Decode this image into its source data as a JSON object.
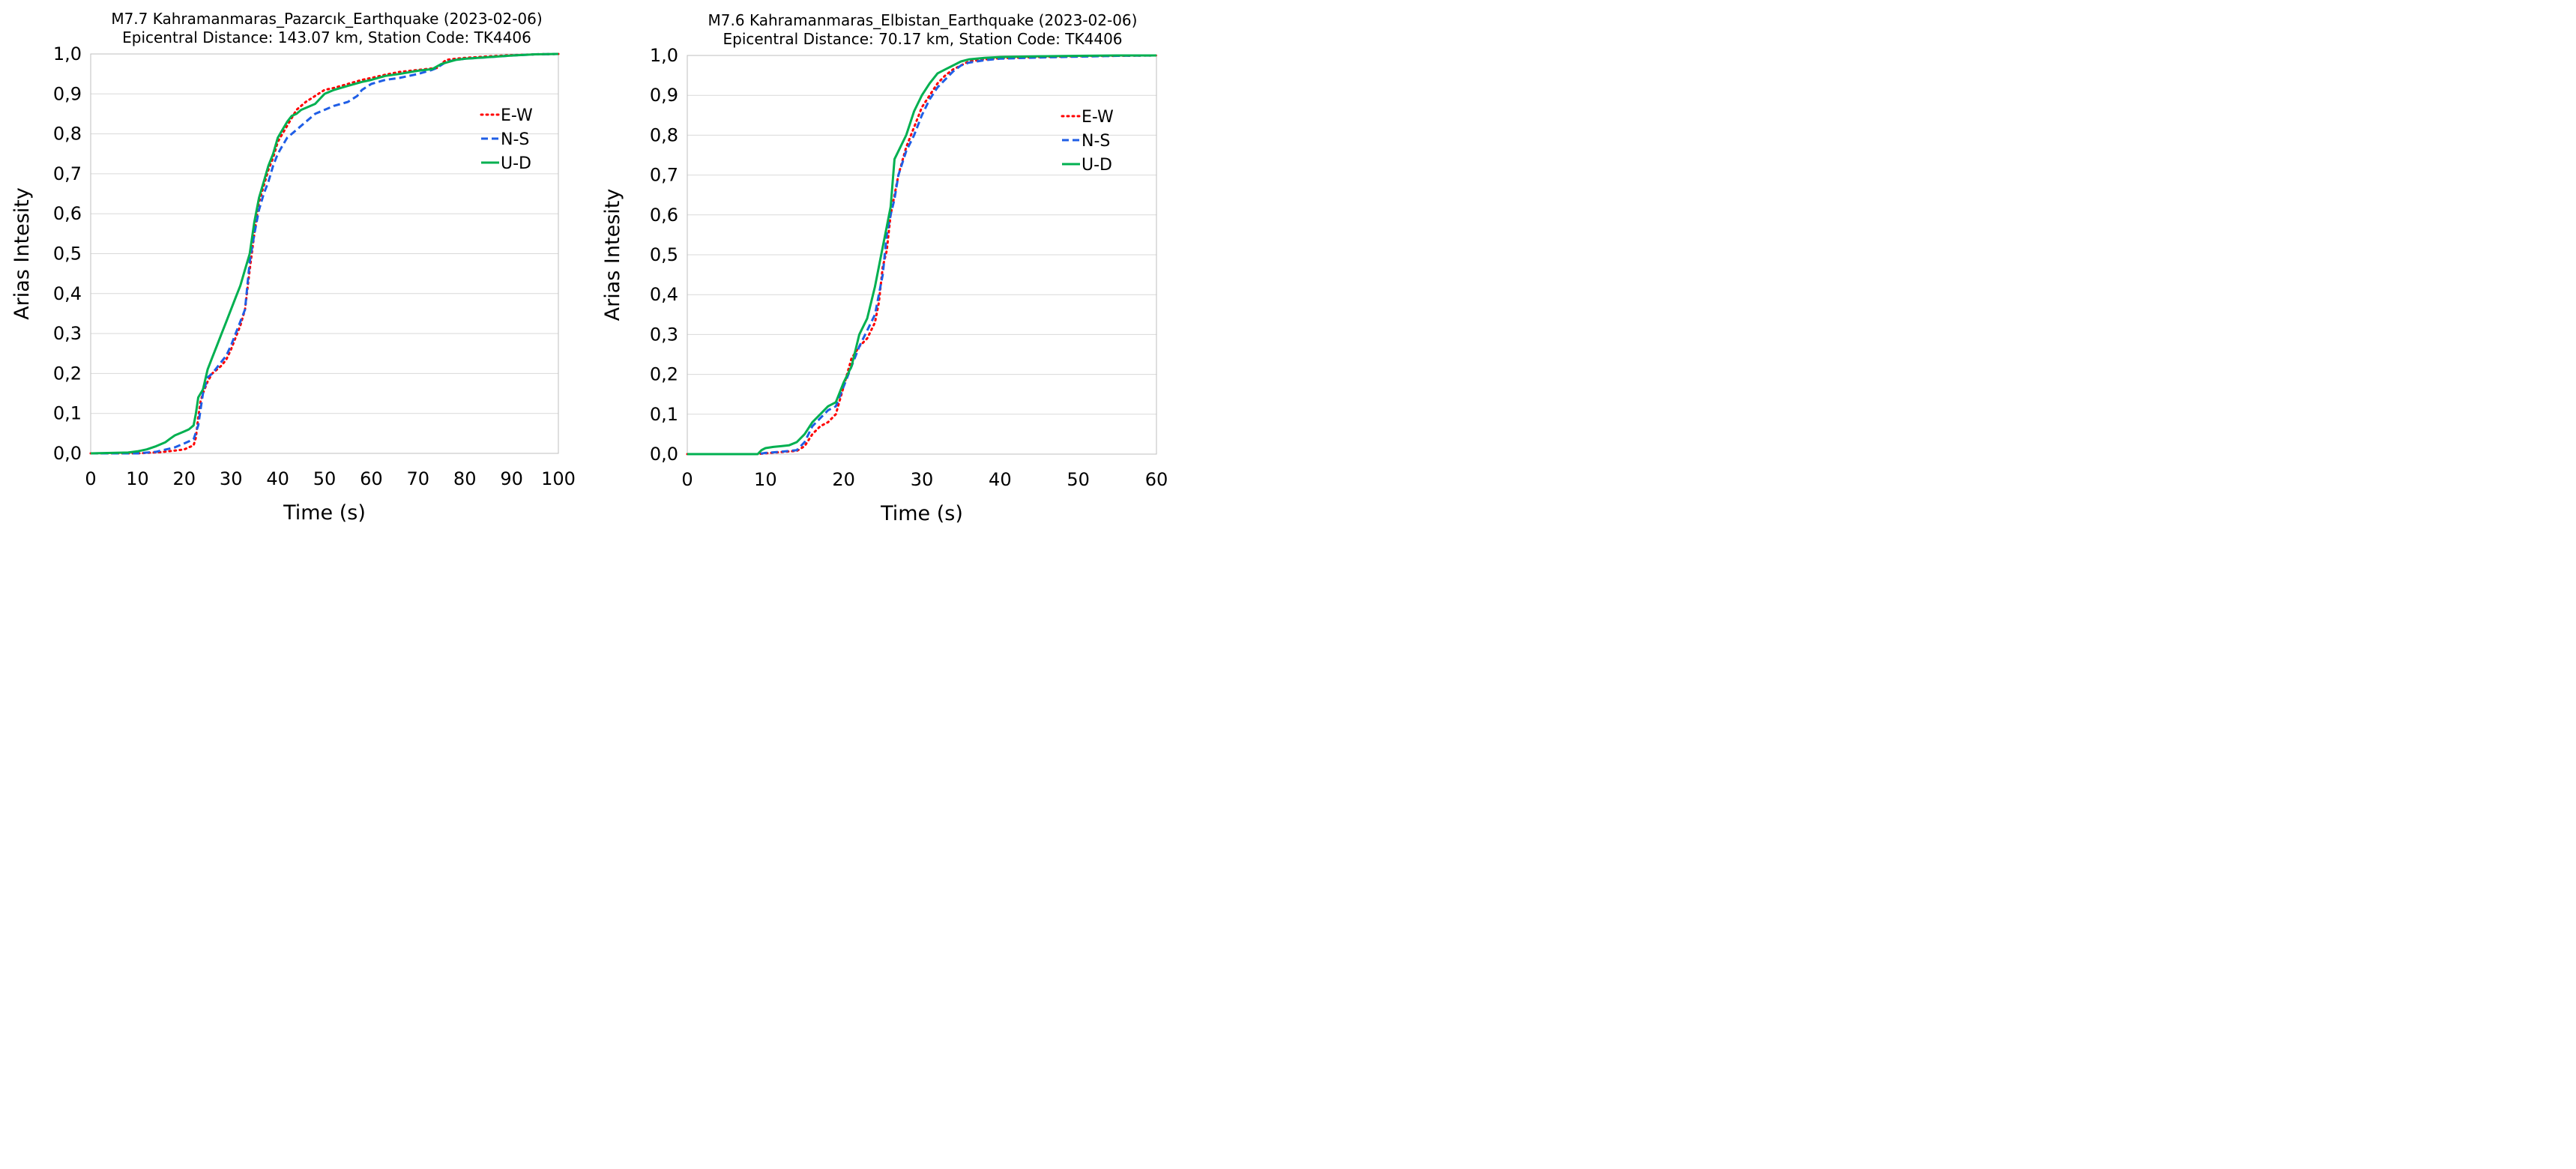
{
  "chart_data": [
    {
      "type": "line",
      "title": "M7.7 Kahramanmaras_Pazarcık_Earthquake (2023-02-06)",
      "subtitle": "Epicentral Distance: 143.07 km, Station Code: TK4406",
      "xlabel": "Time (s)",
      "ylabel": "Arias Intesity",
      "xlim": [
        0,
        100
      ],
      "ylim": [
        0,
        1
      ],
      "x_ticks": [
        0,
        10,
        20,
        30,
        40,
        50,
        60,
        70,
        80,
        90,
        100
      ],
      "x_tick_labels": [
        "0",
        "10",
        "20",
        "30",
        "40",
        "50",
        "60",
        "70",
        "80",
        "90",
        "100"
      ],
      "y_ticks": [
        0,
        0.1,
        0.2,
        0.3,
        0.4,
        0.5,
        0.6,
        0.7,
        0.8,
        0.9,
        1.0
      ],
      "y_tick_labels": [
        "0,0",
        "0,1",
        "0,2",
        "0,3",
        "0,4",
        "0,5",
        "0,6",
        "0,7",
        "0,8",
        "0,9",
        "1,0"
      ],
      "grid": true,
      "legend_position": "right-upper",
      "series": [
        {
          "name": "E-W",
          "color": "#ff0000",
          "style": "dotted",
          "x": [
            0,
            10,
            15,
            18,
            20,
            21,
            22,
            22.5,
            23,
            23.5,
            24,
            25,
            26,
            27,
            28,
            29,
            30,
            31,
            32,
            33,
            34,
            35,
            36,
            37,
            38,
            39,
            40,
            41,
            42,
            43,
            44,
            45,
            46,
            48,
            50,
            52,
            55,
            58,
            60,
            63,
            66,
            70,
            74,
            75,
            76,
            78,
            80,
            85,
            90,
            95,
            100
          ],
          "y": [
            0,
            0,
            0.003,
            0.007,
            0.01,
            0.015,
            0.02,
            0.04,
            0.09,
            0.13,
            0.15,
            0.18,
            0.2,
            0.21,
            0.22,
            0.235,
            0.26,
            0.29,
            0.32,
            0.36,
            0.46,
            0.55,
            0.63,
            0.67,
            0.71,
            0.74,
            0.78,
            0.8,
            0.82,
            0.84,
            0.86,
            0.87,
            0.88,
            0.895,
            0.91,
            0.915,
            0.925,
            0.935,
            0.94,
            0.948,
            0.955,
            0.96,
            0.965,
            0.975,
            0.985,
            0.988,
            0.99,
            0.994,
            0.997,
            0.999,
            1.0
          ]
        },
        {
          "name": "N-S",
          "color": "#1f5ee6",
          "style": "dashed",
          "x": [
            0,
            10,
            14,
            18,
            20,
            21,
            22,
            23,
            23.5,
            24,
            25,
            26,
            27,
            28,
            29,
            30,
            31,
            32,
            33,
            34,
            35,
            36,
            37,
            38,
            39,
            40,
            41,
            42,
            43,
            44,
            45,
            46,
            48,
            50,
            52,
            55,
            57,
            58,
            60,
            63,
            66,
            70,
            73,
            74,
            76,
            78,
            80,
            85,
            90,
            95,
            100
          ],
          "y": [
            0,
            0,
            0.004,
            0.015,
            0.025,
            0.03,
            0.035,
            0.07,
            0.11,
            0.15,
            0.19,
            0.2,
            0.215,
            0.23,
            0.245,
            0.27,
            0.3,
            0.33,
            0.36,
            0.48,
            0.55,
            0.61,
            0.65,
            0.68,
            0.72,
            0.75,
            0.77,
            0.79,
            0.8,
            0.81,
            0.82,
            0.83,
            0.85,
            0.86,
            0.87,
            0.88,
            0.895,
            0.91,
            0.925,
            0.935,
            0.94,
            0.95,
            0.96,
            0.965,
            0.98,
            0.985,
            0.988,
            0.992,
            0.996,
            0.999,
            1.0
          ]
        },
        {
          "name": "U-D",
          "color": "#00b050",
          "style": "solid",
          "x": [
            0,
            8,
            10,
            12,
            14,
            16,
            17,
            18,
            19,
            20,
            21,
            22,
            22.5,
            23,
            24,
            25,
            26,
            27,
            28,
            29,
            30,
            31,
            32,
            33,
            34,
            35,
            36,
            37,
            38,
            39,
            40,
            41,
            42,
            43,
            44,
            45,
            46,
            48,
            50,
            52,
            55,
            58,
            60,
            63,
            66,
            70,
            73,
            75,
            78,
            80,
            85,
            90,
            95,
            100
          ],
          "y": [
            0,
            0.002,
            0.005,
            0.01,
            0.018,
            0.028,
            0.037,
            0.045,
            0.05,
            0.055,
            0.06,
            0.07,
            0.1,
            0.14,
            0.16,
            0.21,
            0.24,
            0.27,
            0.3,
            0.33,
            0.36,
            0.39,
            0.42,
            0.46,
            0.5,
            0.58,
            0.64,
            0.68,
            0.72,
            0.75,
            0.79,
            0.81,
            0.83,
            0.845,
            0.85,
            0.86,
            0.865,
            0.875,
            0.9,
            0.91,
            0.92,
            0.93,
            0.935,
            0.945,
            0.95,
            0.958,
            0.962,
            0.975,
            0.985,
            0.988,
            0.992,
            0.996,
            0.999,
            1.0
          ]
        }
      ]
    },
    {
      "type": "line",
      "title": "M7.6 Kahramanmaras_Elbistan_Earthquake (2023-02-06)",
      "subtitle": "Epicentral Distance: 70.17 km, Station Code: TK4406",
      "xlabel": "Time (s)",
      "ylabel": "Arias Intesity",
      "xlim": [
        0,
        60
      ],
      "ylim": [
        0,
        1
      ],
      "x_ticks": [
        0,
        10,
        20,
        30,
        40,
        50,
        60
      ],
      "x_tick_labels": [
        "0",
        "10",
        "20",
        "30",
        "40",
        "50",
        "60"
      ],
      "y_ticks": [
        0,
        0.1,
        0.2,
        0.3,
        0.4,
        0.5,
        0.6,
        0.7,
        0.8,
        0.9,
        1.0
      ],
      "y_tick_labels": [
        "0,0",
        "0,1",
        "0,2",
        "0,3",
        "0,4",
        "0,5",
        "0,6",
        "0,7",
        "0,8",
        "0,9",
        "1,0"
      ],
      "grid": true,
      "legend_position": "right-upper",
      "series": [
        {
          "name": "E-W",
          "color": "#ff0000",
          "style": "dotted",
          "x": [
            0,
            9,
            10,
            12,
            14,
            15,
            16,
            17,
            18,
            19,
            20,
            21,
            22,
            23,
            24,
            24.5,
            25,
            25.5,
            26,
            26.5,
            27,
            28,
            29,
            30,
            31,
            32,
            33,
            34,
            35,
            36,
            38,
            40,
            45,
            50,
            55,
            60
          ],
          "y": [
            0,
            0,
            0.002,
            0.005,
            0.008,
            0.02,
            0.05,
            0.07,
            0.08,
            0.1,
            0.17,
            0.24,
            0.27,
            0.29,
            0.33,
            0.38,
            0.47,
            0.51,
            0.6,
            0.65,
            0.7,
            0.77,
            0.82,
            0.87,
            0.9,
            0.93,
            0.95,
            0.965,
            0.975,
            0.985,
            0.99,
            0.993,
            0.996,
            0.998,
            0.999,
            1.0
          ]
        },
        {
          "name": "N-S",
          "color": "#1f5ee6",
          "style": "dashed",
          "x": [
            0,
            9,
            10,
            12,
            14,
            15,
            16,
            17,
            18,
            19,
            20,
            21,
            22,
            23,
            24,
            25,
            25.5,
            26,
            26.5,
            27,
            28,
            29,
            30,
            31,
            32,
            33,
            34,
            35,
            36,
            38,
            40,
            45,
            50,
            55,
            60
          ],
          "y": [
            0,
            0,
            0.003,
            0.006,
            0.01,
            0.03,
            0.07,
            0.09,
            0.11,
            0.12,
            0.17,
            0.22,
            0.27,
            0.31,
            0.35,
            0.45,
            0.55,
            0.6,
            0.64,
            0.7,
            0.76,
            0.8,
            0.85,
            0.89,
            0.92,
            0.94,
            0.96,
            0.975,
            0.982,
            0.988,
            0.992,
            0.995,
            0.997,
            0.999,
            1.0
          ]
        },
        {
          "name": "U-D",
          "color": "#00b050",
          "style": "solid",
          "x": [
            0,
            9,
            9.5,
            10,
            11,
            12,
            13,
            14,
            15,
            16,
            17,
            18,
            19,
            20,
            21,
            22,
            23,
            24,
            25,
            25.5,
            26,
            26.5,
            27,
            28,
            29,
            30,
            31,
            32,
            33,
            34,
            35,
            36,
            38,
            40,
            45,
            50,
            55,
            60
          ],
          "y": [
            0,
            0,
            0.01,
            0.015,
            0.018,
            0.02,
            0.022,
            0.03,
            0.05,
            0.08,
            0.1,
            0.12,
            0.13,
            0.18,
            0.22,
            0.3,
            0.34,
            0.42,
            0.52,
            0.57,
            0.62,
            0.74,
            0.76,
            0.8,
            0.86,
            0.9,
            0.93,
            0.955,
            0.965,
            0.975,
            0.985,
            0.99,
            0.994,
            0.996,
            0.998,
            0.999,
            1.0,
            1.0
          ]
        }
      ]
    }
  ]
}
